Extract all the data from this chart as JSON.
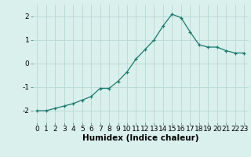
{
  "x": [
    0,
    1,
    2,
    3,
    4,
    5,
    6,
    7,
    8,
    9,
    10,
    11,
    12,
    13,
    14,
    15,
    16,
    17,
    18,
    19,
    20,
    21,
    22,
    23
  ],
  "y": [
    -2.0,
    -2.0,
    -1.9,
    -1.8,
    -1.7,
    -1.55,
    -1.4,
    -1.05,
    -1.05,
    -0.75,
    -0.35,
    0.2,
    0.6,
    1.0,
    1.6,
    2.1,
    1.95,
    1.35,
    0.8,
    0.7,
    0.7,
    0.55,
    0.45,
    0.45
  ],
  "xlim": [
    -0.5,
    23.5
  ],
  "ylim": [
    -2.5,
    2.5
  ],
  "yticks": [
    -2,
    -1,
    0,
    1,
    2
  ],
  "xticks": [
    0,
    1,
    2,
    3,
    4,
    5,
    6,
    7,
    8,
    9,
    10,
    11,
    12,
    13,
    14,
    15,
    16,
    17,
    18,
    19,
    20,
    21,
    22,
    23
  ],
  "xlabel": "Humidex (Indice chaleur)",
  "line_color": "#1a7a6e",
  "marker": "+",
  "marker_size": 3,
  "bg_color": "#daf0ec",
  "grid_color": "#b8d8d4",
  "tick_label_fontsize": 6.5,
  "xlabel_fontsize": 7.5
}
